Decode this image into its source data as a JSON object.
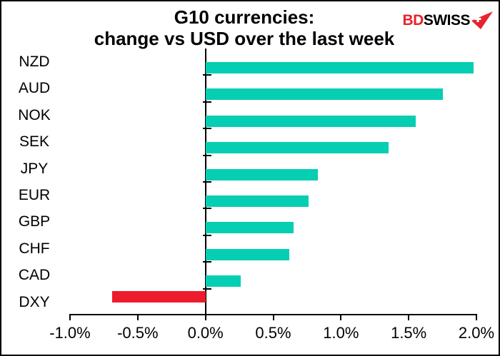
{
  "title": {
    "line1": "G10 currencies:",
    "line2": "change vs USD over the last week"
  },
  "logo": {
    "bd": "BD",
    "swiss": "SWISS",
    "bd_color": "#e8232d",
    "swiss_color": "#000000",
    "arrow_color": "#e8232d"
  },
  "chart_data": {
    "type": "bar",
    "orientation": "horizontal",
    "title": "G10 currencies: change vs USD over the last week",
    "categories": [
      "NZD",
      "AUD",
      "NOK",
      "SEK",
      "JPY",
      "EUR",
      "GBP",
      "CHF",
      "CAD",
      "DXY"
    ],
    "values": [
      1.98,
      1.75,
      1.55,
      1.35,
      0.83,
      0.76,
      0.65,
      0.62,
      0.26,
      -0.69
    ],
    "unit": "%",
    "xlim": [
      -1.0,
      2.0
    ],
    "x_tick_labels": [
      "-1.0%",
      "-0.5%",
      "0.0%",
      "0.5%",
      "1.0%",
      "1.5%",
      "2.0%"
    ],
    "x_tick_values": [
      -1.0,
      -0.5,
      0.0,
      0.5,
      1.0,
      1.5,
      2.0
    ],
    "positive_color": "#05ceb3",
    "negative_color": "#ec1c2c",
    "axis_color": "#000000",
    "grid": false,
    "legend": null
  }
}
